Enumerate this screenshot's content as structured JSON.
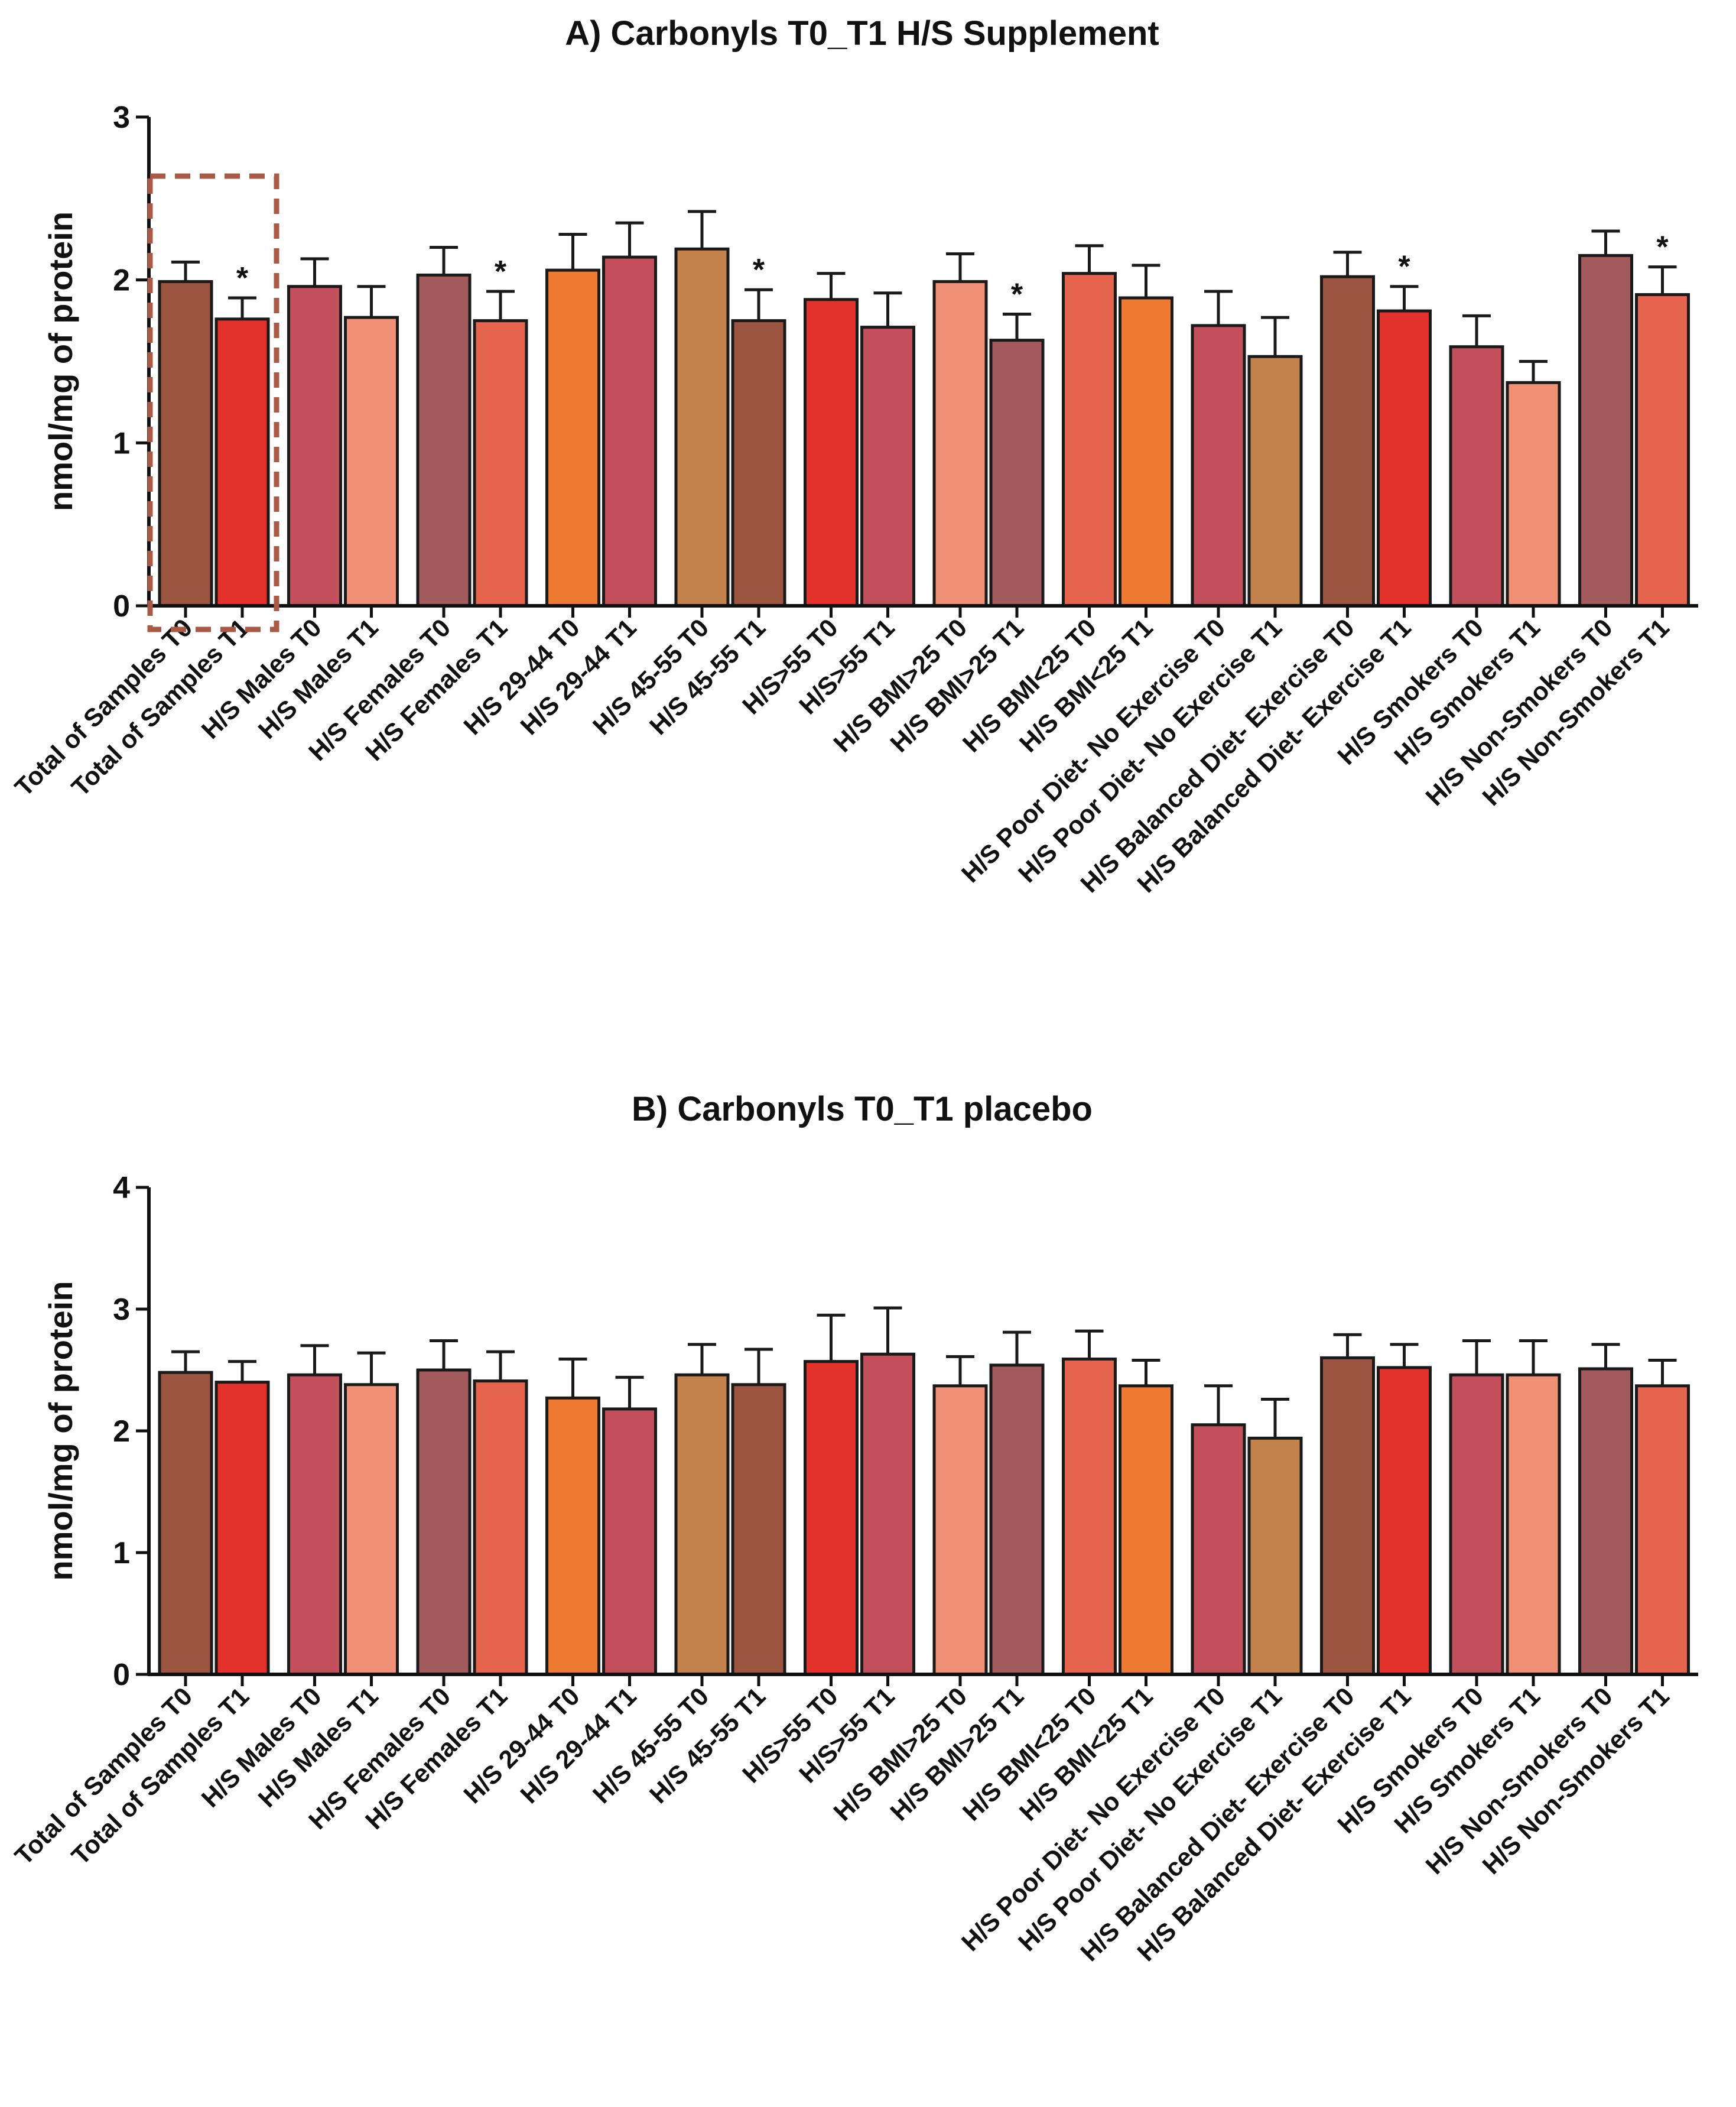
{
  "colors": {
    "axis": "#111111",
    "border": "#1a1a1a",
    "highlight_box": "#a95a46",
    "palette": [
      "#9c5540",
      "#e3322c",
      "#c34f5d",
      "#f09077",
      "#a25a5d",
      "#e6644e",
      "#ed7a30",
      "#c3824b"
    ]
  },
  "chart_data": [
    {
      "type": "bar",
      "title": "A) Carbonyls T0_T1 H/S Supplement",
      "ylabel": "nmol/mg of protein",
      "xlabel": "",
      "ylim": [
        0,
        3
      ],
      "yticks": [
        "0",
        "1",
        "2",
        "3"
      ],
      "categories": [
        "Total of Samples T0",
        "Total of Samples T1",
        "H/S Males T0",
        "H/S Males T1",
        "H/S Females T0",
        "H/S Females T1",
        "H/S 29-44 T0",
        "H/S 29-44 T1",
        "H/S 45-55 T0",
        "H/S 45-55 T1",
        "H/S>55 T0",
        "H/S>55 T1",
        "H/S BMI>25 T0",
        "H/S BMI>25 T1",
        "H/S BMI<25 T0",
        "H/S BMI<25 T1",
        "H/S Poor Diet- No Exercise T0",
        "H/S Poor Diet- No Exercise T1",
        "H/S Balanced Diet- Exercise T0",
        "H/S Balanced Diet- Exercise T1",
        "H/S Smokers T0",
        "H/S Smokers T1",
        "H/S Non-Smokers T0",
        "H/S Non-Smokers T1"
      ],
      "values": [
        1.99,
        1.76,
        1.96,
        1.77,
        2.03,
        1.75,
        2.06,
        2.14,
        2.19,
        1.75,
        1.88,
        1.71,
        1.99,
        1.63,
        2.04,
        1.89,
        1.72,
        1.53,
        2.02,
        1.81,
        1.59,
        1.37,
        2.15,
        1.91
      ],
      "errors": [
        0.12,
        0.13,
        0.17,
        0.19,
        0.17,
        0.18,
        0.22,
        0.21,
        0.23,
        0.19,
        0.16,
        0.21,
        0.17,
        0.16,
        0.17,
        0.2,
        0.21,
        0.24,
        0.15,
        0.15,
        0.19,
        0.13,
        0.15,
        0.17
      ],
      "colors": [
        "#9c5540",
        "#e3322c",
        "#c34f5d",
        "#f09077",
        "#a25a5d",
        "#e6644e",
        "#ed7a30",
        "#c34f5d",
        "#c3824b",
        "#9c5540",
        "#e3322c",
        "#c34f5d",
        "#f09077",
        "#a25a5d",
        "#e6644e",
        "#ed7a30",
        "#c34f5d",
        "#c3824b",
        "#9c5540",
        "#e3322c",
        "#c34f5d",
        "#f09077",
        "#a25a5d",
        "#e6644e"
      ],
      "significance": [
        {
          "label": "*",
          "bar": 1
        },
        {
          "label": "*",
          "bar": 5
        },
        {
          "label": "*",
          "bar": 9
        },
        {
          "label": "*",
          "bar": 13
        },
        {
          "label": "*",
          "bar": 19
        },
        {
          "label": "*",
          "bar": 23
        }
      ],
      "highlight_group": [
        0,
        1
      ]
    },
    {
      "type": "bar",
      "title": "B) Carbonyls T0_T1 placebo",
      "ylabel": "nmol/mg of protein",
      "xlabel": "",
      "ylim": [
        0,
        4
      ],
      "yticks": [
        "0",
        "1",
        "2",
        "3",
        "4"
      ],
      "categories": [
        "Total of Samples T0",
        "Total of Samples T1",
        "H/S Males T0",
        "H/S Males T1",
        "H/S Females T0",
        "H/S Females T1",
        "H/S 29-44 T0",
        "H/S 29-44 T1",
        "H/S 45-55 T0",
        "H/S 45-55 T1",
        "H/S>55 T0",
        "H/S>55 T1",
        "H/S BMI>25 T0",
        "H/S BMI>25 T1",
        "H/S BMI<25 T0",
        "H/S BMI<25 T1",
        "H/S Poor Diet- No Exercise T0",
        "H/S Poor Diet- No Exercise T1",
        "H/S Balanced Diet- Exercise T0",
        "H/S Balanced Diet- Exercise T1",
        "H/S Smokers T0",
        "H/S Smokers T1",
        "H/S Non-Smokers T0",
        "H/S Non-Smokers T1"
      ],
      "values": [
        2.48,
        2.4,
        2.46,
        2.38,
        2.5,
        2.41,
        2.27,
        2.18,
        2.46,
        2.38,
        2.57,
        2.63,
        2.37,
        2.54,
        2.59,
        2.37,
        2.05,
        1.94,
        2.6,
        2.52,
        2.46,
        2.46,
        2.51,
        2.37
      ],
      "errors": [
        0.17,
        0.17,
        0.24,
        0.26,
        0.24,
        0.24,
        0.32,
        0.26,
        0.25,
        0.29,
        0.38,
        0.38,
        0.24,
        0.27,
        0.23,
        0.21,
        0.32,
        0.32,
        0.19,
        0.19,
        0.28,
        0.28,
        0.2,
        0.21
      ],
      "colors": [
        "#9c5540",
        "#e3322c",
        "#c34f5d",
        "#f09077",
        "#a25a5d",
        "#e6644e",
        "#ed7a30",
        "#c34f5d",
        "#c3824b",
        "#9c5540",
        "#e3322c",
        "#c34f5d",
        "#f09077",
        "#a25a5d",
        "#e6644e",
        "#ed7a30",
        "#c34f5d",
        "#c3824b",
        "#9c5540",
        "#e3322c",
        "#c34f5d",
        "#f09077",
        "#a25a5d",
        "#e6644e"
      ],
      "significance": []
    }
  ]
}
